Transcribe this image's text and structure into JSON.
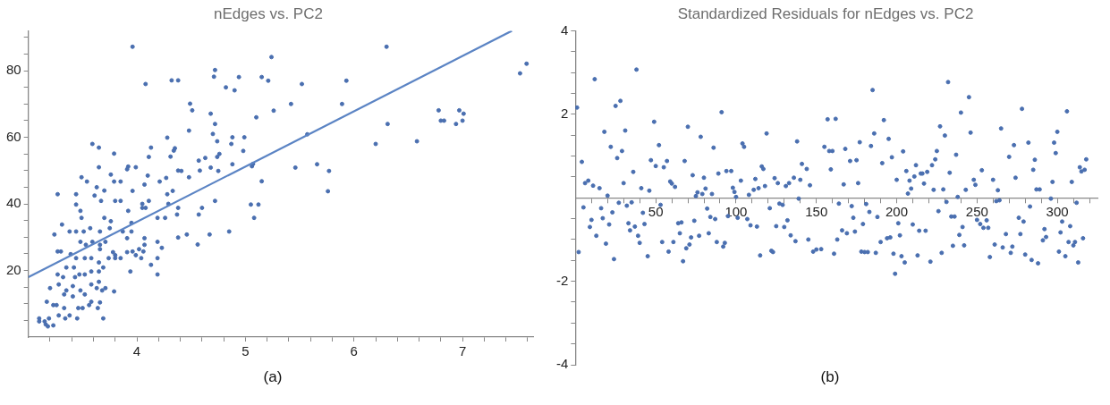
{
  "chart_data": [
    {
      "type": "scatter",
      "title": "nEdges vs. PC2",
      "annotations": [
        "(a)"
      ],
      "grid": false,
      "legend": false,
      "marker": "circle",
      "xlim": [
        3,
        7.65
      ],
      "ylim": [
        0,
        92
      ],
      "xticks": [
        {
          "value": 3.2,
          "label": null
        },
        {
          "value": 3.4,
          "label": null
        },
        {
          "value": 3.6,
          "label": null
        },
        {
          "value": 3.8,
          "label": null
        },
        4,
        {
          "value": 4.2,
          "label": null
        },
        {
          "value": 4.4,
          "label": null
        },
        {
          "value": 4.6,
          "label": null
        },
        {
          "value": 4.8,
          "label": null
        },
        5,
        {
          "value": 5.2,
          "label": null
        },
        {
          "value": 5.4,
          "label": null
        },
        {
          "value": 5.6,
          "label": null
        },
        {
          "value": 5.8,
          "label": null
        },
        6,
        {
          "value": 6.2,
          "label": null
        },
        {
          "value": 6.4,
          "label": null
        },
        {
          "value": 6.6,
          "label": null
        },
        {
          "value": 6.8,
          "label": null
        },
        7,
        {
          "value": 7.2,
          "label": null
        },
        {
          "value": 7.4,
          "label": null
        },
        {
          "value": 7.6,
          "label": null
        }
      ],
      "yticks": [
        {
          "value": 5,
          "label": null
        },
        {
          "value": 10,
          "label": null
        },
        {
          "value": 15,
          "label": null
        },
        20,
        {
          "value": 25,
          "label": null
        },
        {
          "value": 30,
          "label": null
        },
        {
          "value": 35,
          "label": null
        },
        40,
        {
          "value": 45,
          "label": null
        },
        {
          "value": 50,
          "label": null
        },
        {
          "value": 55,
          "label": null
        },
        60,
        {
          "value": 65,
          "label": null
        },
        {
          "value": 70,
          "label": null
        },
        {
          "value": 75,
          "label": null
        },
        80,
        {
          "value": 85,
          "label": null
        },
        {
          "value": 90,
          "label": null
        }
      ],
      "series": [
        {
          "color": "#4a6fb0",
          "x": [
            3.96,
            4.08,
            4.32,
            4.38,
            4.72,
            4.71,
            4.82,
            4.9,
            4.94,
            5.24,
            5.15,
            5.21,
            5.26,
            5.42,
            4.49,
            4.51,
            4.68,
            4.72,
            4.48,
            4.28,
            4.7,
            4.74,
            4.88,
            4.99,
            4.98,
            4.87,
            5.1,
            4.35,
            4.34,
            4.31,
            4.13,
            4.11,
            4.76,
            4.74,
            4.88,
            5.07,
            5.06,
            4.57,
            4.63,
            4.68,
            4.58,
            4.75,
            4.48,
            4.41,
            4.38,
            4.27,
            4.21,
            4.07,
            4.1,
            3.99,
            3.91,
            3.92,
            3.76,
            3.79,
            3.85,
            3.65,
            3.65,
            3.59,
            3.49,
            3.54,
            3.79,
            3.44,
            3.27,
            3.63,
            3.7,
            3.61,
            3.67,
            3.44,
            3.48,
            3.8,
            3.85,
            3.92,
            3.96,
            4.05,
            4.08,
            4.05,
            4.11,
            4.19,
            4.26,
            4.28,
            4.33,
            4.29,
            4.38,
            4.37,
            4.38,
            4.46,
            4.56,
            4.57,
            4.6,
            4.67,
            4.72,
            4.85,
            5.05,
            5.12,
            5.08,
            5.15,
            3.49,
            3.7,
            3.76,
            3.57,
            3.66,
            3.75,
            3.24,
            3.31,
            3.38,
            3.44,
            3.51,
            3.48,
            3.53,
            3.59,
            3.66,
            3.71,
            3.66,
            3.74,
            3.8,
            3.85,
            3.78,
            3.8,
            3.91,
            3.96,
            3.99,
            4.04,
            3.87,
            3.91,
            3.95,
            4.07,
            4.07,
            3.95,
            4.02,
            4.06,
            4.19,
            4.23,
            4.19,
            4.13,
            4.19,
            3.94,
            3.27,
            3.3,
            3.39,
            3.44,
            3.35,
            3.42,
            3.52,
            3.58,
            3.65,
            3.52,
            3.58,
            3.65,
            3.27,
            3.32,
            3.43,
            3.47,
            3.69,
            3.2,
            3.28,
            3.35,
            3.41,
            3.48,
            3.52,
            3.58,
            3.63,
            3.65,
            3.68,
            3.71,
            3.79,
            3.33,
            3.41,
            3.58,
            3.66,
            3.46,
            3.5,
            3.56,
            3.64,
            3.17,
            3.23,
            3.26,
            3.33,
            3.28,
            3.34,
            3.38,
            3.45,
            3.69,
            3.19,
            3.1,
            3.1,
            3.16,
            3.18,
            3.23,
            3.15,
            6.3,
            7.59,
            7.53,
            5.52,
            5.93,
            5.89,
            6.78,
            6.8,
            6.83,
            6.97,
            7.01,
            7.0,
            6.94,
            6.31,
            6.2,
            6.58,
            5.57,
            5.46,
            5.66,
            5.77,
            5.76
          ],
          "values": [
            87.2,
            76,
            77.1,
            77.1,
            80.2,
            78.2,
            75,
            74.1,
            78.1,
            84.1,
            78.1,
            77,
            68,
            70,
            70.1,
            68.1,
            67.1,
            64,
            62,
            59.9,
            61,
            58.8,
            60,
            60,
            55.9,
            58,
            66,
            56.7,
            56,
            54.2,
            56.9,
            54.1,
            55,
            54.1,
            51.9,
            52,
            51.3,
            53,
            53.8,
            50.9,
            50,
            49.9,
            48,
            49.9,
            50,
            47.8,
            46.7,
            45.8,
            48.5,
            51,
            50.4,
            51.2,
            48.8,
            46.7,
            46.7,
            51,
            56.9,
            58,
            48,
            46.7,
            55.1,
            42.9,
            42.9,
            45,
            44,
            42.5,
            40.9,
            39.8,
            37.9,
            40.9,
            40.9,
            37.9,
            43.9,
            38.8,
            38.8,
            40,
            40.9,
            35.8,
            35.8,
            42.9,
            43.9,
            40,
            38.8,
            36.8,
            29.9,
            30.8,
            27.8,
            36.8,
            38.8,
            30.8,
            40.9,
            31.7,
            39.8,
            39.8,
            35.8,
            46.8,
            35.8,
            35.8,
            34.8,
            32.7,
            31.7,
            32.7,
            30.8,
            33.8,
            31.7,
            31.7,
            31.7,
            28.6,
            27.7,
            28.6,
            27.7,
            28.6,
            26.4,
            23.7,
            23.7,
            23.7,
            25.5,
            24.6,
            25.5,
            25.7,
            24.6,
            23.7,
            31.7,
            29.7,
            31.7,
            29.7,
            27.7,
            34.3,
            26.4,
            25.7,
            28.6,
            26.8,
            23.7,
            21.7,
            18.8,
            19.7,
            25.7,
            25.7,
            24.9,
            23.7,
            20.9,
            20.9,
            23.7,
            23.7,
            22.4,
            18.8,
            19.7,
            19.7,
            18.8,
            18,
            18,
            18.8,
            20.9,
            14.7,
            15.8,
            14,
            15.3,
            14,
            12.8,
            15.8,
            14.7,
            16.6,
            14,
            14.7,
            13.7,
            12.8,
            12.2,
            10.6,
            10.4,
            8.7,
            8.7,
            9.6,
            8.7,
            10.6,
            9.6,
            9.6,
            8.7,
            6.5,
            5.6,
            6.5,
            5.6,
            5.6,
            5.6,
            5.6,
            4.7,
            3.8,
            3.2,
            3.5,
            4.7,
            87.2,
            82.1,
            79.2,
            76,
            77,
            70,
            68.1,
            65,
            65,
            68.1,
            67.1,
            65,
            64,
            64,
            58,
            58.8,
            60.9,
            50.9,
            51.9,
            49.9,
            43.8
          ]
        },
        {
          "type": "line",
          "color": "#5b84c4",
          "marker": "none",
          "x": [
            3,
            7.455
          ],
          "values": [
            18,
            92
          ]
        }
      ]
    },
    {
      "type": "scatter",
      "title": "Standardized Residuals for nEdges vs. PC2",
      "annotations": [
        "(b)"
      ],
      "grid": false,
      "legend": false,
      "marker": "circle",
      "xlim": [
        0,
        325
      ],
      "ylim": [
        -4,
        4
      ],
      "xticks": [
        {
          "value": 10,
          "label": null
        },
        {
          "value": 20,
          "label": null
        },
        {
          "value": 30,
          "label": null
        },
        {
          "value": 40,
          "label": null
        },
        50,
        {
          "value": 60,
          "label": null
        },
        {
          "value": 70,
          "label": null
        },
        {
          "value": 80,
          "label": null
        },
        {
          "value": 90,
          "label": null
        },
        100,
        {
          "value": 110,
          "label": null
        },
        {
          "value": 120,
          "label": null
        },
        {
          "value": 130,
          "label": null
        },
        {
          "value": 140,
          "label": null
        },
        150,
        {
          "value": 160,
          "label": null
        },
        {
          "value": 170,
          "label": null
        },
        {
          "value": 180,
          "label": null
        },
        {
          "value": 190,
          "label": null
        },
        200,
        {
          "value": 210,
          "label": null
        },
        {
          "value": 220,
          "label": null
        },
        {
          "value": 230,
          "label": null
        },
        {
          "value": 240,
          "label": null
        },
        250,
        {
          "value": 260,
          "label": null
        },
        {
          "value": 270,
          "label": null
        },
        {
          "value": 280,
          "label": null
        },
        {
          "value": 290,
          "label": null
        },
        300,
        {
          "value": 310,
          "label": null
        },
        {
          "value": 320,
          "label": null
        }
      ],
      "yticks": [
        -4,
        {
          "value": -3.5,
          "label": null
        },
        {
          "value": -3,
          "label": null
        },
        {
          "value": -2.5,
          "label": null
        },
        -2,
        {
          "value": -1.5,
          "label": null
        },
        {
          "value": -1,
          "label": null
        },
        {
          "value": -0.5,
          "label": null
        },
        {
          "value": 0.5,
          "label": null
        },
        {
          "value": 1,
          "label": null
        },
        {
          "value": 1.5,
          "label": null
        },
        2,
        {
          "value": 2.5,
          "label": null
        },
        {
          "value": 3,
          "label": null
        },
        {
          "value": 3.5,
          "label": null
        },
        4
      ],
      "series": [
        {
          "color": "#4a6fb0",
          "x": [
            1,
            4,
            2,
            5,
            6,
            8,
            9,
            10,
            12,
            11,
            13,
            15,
            16,
            17,
            18,
            19,
            20,
            21,
            22,
            23,
            24,
            25,
            26,
            27,
            28,
            29,
            30,
            31,
            32,
            33,
            34,
            35,
            36,
            37,
            38,
            39,
            40,
            41,
            42,
            43,
            45,
            46,
            47,
            49,
            50,
            52,
            53,
            54,
            55,
            57,
            58,
            59,
            60,
            61,
            62,
            64,
            65,
            66,
            67,
            68,
            69,
            70,
            71,
            72,
            73,
            74,
            75,
            76,
            77,
            78,
            79,
            80,
            81,
            82,
            83,
            84,
            85,
            86,
            87,
            88,
            89,
            91,
            92,
            93,
            94,
            95,
            97,
            98,
            99,
            100,
            101,
            103,
            104,
            105,
            107,
            108,
            109,
            111,
            112,
            113,
            114,
            115,
            116,
            117,
            119,
            118,
            121,
            122,
            123,
            124,
            125,
            126,
            127,
            129,
            130,
            131,
            132,
            133,
            134,
            136,
            137,
            138,
            139,
            140,
            141,
            144,
            145,
            146,
            148,
            150,
            153,
            155,
            157,
            158,
            159,
            160,
            161,
            162,
            163,
            164,
            166,
            167,
            168,
            169,
            171,
            172,
            173,
            174,
            175,
            176,
            177,
            178,
            179,
            180,
            181,
            182,
            183,
            184,
            185,
            186,
            187,
            188,
            190,
            191,
            192,
            194,
            195,
            196,
            197,
            198,
            199,
            200,
            201,
            202,
            203,
            204,
            205,
            206,
            207,
            208,
            209,
            210,
            211,
            212,
            213,
            214,
            215,
            216,
            217,
            218,
            219,
            221,
            222,
            223,
            224,
            225,
            226,
            227,
            228,
            229,
            230,
            231,
            232,
            233,
            234,
            235,
            236,
            237,
            238,
            239,
            240,
            241,
            242,
            243,
            245,
            246,
            248,
            249,
            250,
            252,
            253,
            254,
            256,
            257,
            258,
            260,
            261,
            262,
            263,
            264,
            265,
            266,
            268,
            270,
            271,
            272,
            273,
            274,
            276,
            277,
            278,
            279,
            280,
            282,
            283,
            284,
            285,
            286,
            287,
            288,
            289,
            291,
            292,
            293,
            296,
            297,
            298,
            299,
            300,
            301,
            302,
            303,
            305,
            306,
            307,
            308,
            309,
            310,
            311,
            312,
            313,
            314,
            315,
            316,
            317,
            318
          ],
          "values": [
            2.16,
            0.86,
            -1.3,
            -0.23,
            0.35,
            0.41,
            -0.7,
            -0.53,
            2.84,
            0.29,
            -0.91,
            0.23,
            -0.25,
            -0.49,
            1.58,
            -1.1,
            0.05,
            -0.64,
            1.22,
            -0.35,
            -1.47,
            2.2,
            0.95,
            -0.12,
            2.32,
            1.12,
            0.35,
            1.61,
            -0.19,
            -0.61,
            -0.78,
            -0.11,
            0.62,
            -0.69,
            3.07,
            -0.91,
            -1.08,
            0.23,
            -0.36,
            -0.63,
            -1.4,
            0.17,
            0.9,
            1.82,
            0.76,
            1.26,
            -0.17,
            -1.06,
            0.73,
            0.88,
            -1.29,
            0.39,
            0.34,
            -1.06,
            0.26,
            -0.61,
            -0.85,
            -0.59,
            -1.52,
            0.88,
            -1.21,
            1.7,
            -1.12,
            -0.95,
            0.54,
            -0.55,
            0.04,
            0.13,
            -0.91,
            1.46,
            0.09,
            0.48,
            0.22,
            -0.26,
            -0.85,
            -0.46,
            0.09,
            1.2,
            -0.51,
            -1.06,
            0.58,
            2.05,
            -1.17,
            -1.08,
            0.64,
            -0.44,
            0.64,
            0.24,
            0.14,
            0.02,
            -0.48,
            0.41,
            1.3,
            1.22,
            -0.51,
            0.07,
            -0.66,
            0.19,
            0.45,
            -0.69,
            0.23,
            -1.38,
            0.75,
            0.69,
            1.54,
            0.28,
            -0.25,
            -1.27,
            -1.3,
            0.47,
            -0.68,
            0.35,
            -0.14,
            -0.17,
            -0.7,
            0.28,
            -0.54,
            0.35,
            -0.9,
            0.48,
            -1.04,
            1.35,
            -0.02,
            0.43,
            0.81,
            0.69,
            -1.0,
            0.3,
            -1.29,
            -1.24,
            -1.23,
            1.22,
            1.88,
            1.12,
            0.68,
            1.12,
            -1.34,
            1.89,
            -1.0,
            -0.14,
            -0.78,
            0.32,
            1.17,
            -0.85,
            0.88,
            -0.2,
            -0.48,
            -0.81,
            0.9,
            0.35,
            1.33,
            -1.29,
            -0.63,
            -1.3,
            -0.15,
            -1.3,
            -0.34,
            1.24,
            2.58,
            1.54,
            -1.32,
            -0.46,
            -1.06,
            0.83,
            1.86,
            -0.97,
            1.41,
            -0.95,
            0.97,
            -1.34,
            -1.82,
            0.43,
            -0.61,
            -0.9,
            -1.4,
            1.11,
            -1.55,
            0.64,
            0.1,
            0.41,
            0.22,
            -0.64,
            0.51,
            0.78,
            -1.38,
            -0.79,
            0.58,
            0.58,
            0.34,
            -0.79,
            0.62,
            -1.53,
            0.78,
            0.19,
            0.92,
            1.12,
            -0.32,
            1.71,
            -1.32,
            0.2,
            1.49,
            -0.1,
            2.77,
            0.6,
            -0.45,
            -1.15,
            -0.45,
            1.03,
            0.02,
            -0.89,
            2.04,
            -0.7,
            -1.14,
            0.19,
            2.41,
            1.56,
            0.43,
            0.31,
            -0.53,
            -0.63,
            0.66,
            -0.72,
            -0.54,
            -0.72,
            -1.42,
            0.43,
            -1.12,
            -0.08,
            0.18,
            -0.06,
            1.66,
            -1.19,
            -0.87,
            0.98,
            -1.32,
            -1.17,
            1.26,
            0.48,
            -0.48,
            -0.87,
            2.13,
            -0.57,
            -1.36,
            1.32,
            -0.21,
            -1.49,
            0.67,
            0.91,
            0.2,
            -1.57,
            0.2,
            -1.02,
            -0.75,
            -0.94,
            -0.02,
            0.38,
            1.32,
            1.07,
            1.58,
            -1.29,
            -0.83,
            -0.57,
            -1.4,
            2.07,
            -1.06,
            -0.68,
            0.38,
            -1.14,
            -1.06,
            -0.12,
            -1.55,
            0.73,
            0.63,
            -0.97,
            0.67,
            0.92
          ]
        }
      ]
    }
  ]
}
